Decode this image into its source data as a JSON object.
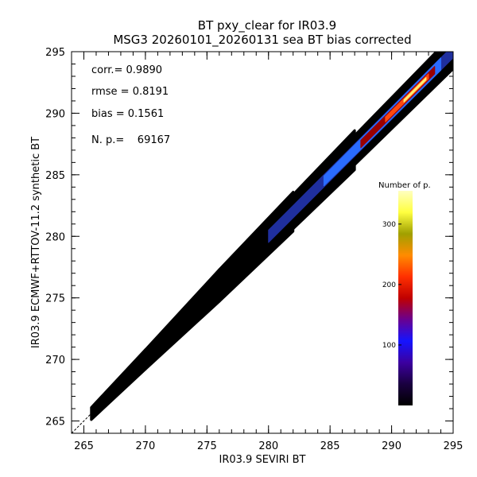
{
  "chart_data": {
    "type": "heatmap",
    "title": "BT pxy_clear for IR03.9",
    "subtitle": "MSG3 20260101_20260131 sea BT bias corrected",
    "xlabel": "IR03.9 SEVIRI BT",
    "ylabel": "IR03.9 ECMWF+RTTOV-11.2 synthetic BT",
    "xlim": [
      264,
      295
    ],
    "ylim": [
      264,
      295
    ],
    "x_ticks": [
      "265",
      "270",
      "275",
      "280",
      "285",
      "290",
      "295"
    ],
    "y_ticks": [
      "265",
      "270",
      "275",
      "280",
      "285",
      "290",
      "295"
    ],
    "stats": {
      "corr": "corr.= 0.9890",
      "rmse": "rmse = 0.8191",
      "bias": "bias = 0.1561",
      "np": "N. p.=    69167"
    },
    "colorbar": {
      "title": "Number of p.",
      "ticks": [
        "100",
        "200",
        "300"
      ],
      "tick_values": [
        100,
        200,
        300
      ],
      "range": [
        0,
        355
      ],
      "colors": [
        "#000000",
        "#1a0040",
        "#3c00a0",
        "#1414ff",
        "#6a0090",
        "#c00000",
        "#ff3000",
        "#ff8c00",
        "#a0a000",
        "#ffff40",
        "#ffffc0"
      ]
    },
    "density_bands": [
      {
        "x": [
          265.6,
          270
        ],
        "lo": 0.5,
        "hi": 0.8,
        "level": 0
      },
      {
        "x": [
          270,
          276
        ],
        "lo": 0.8,
        "hi": 1.3,
        "level": 0
      },
      {
        "x": [
          276,
          282
        ],
        "lo": 1.3,
        "hi": 1.6,
        "level": 0
      },
      {
        "x": [
          282,
          287
        ],
        "lo": 1.4,
        "hi": 1.6,
        "level": 0
      },
      {
        "x": [
          287,
          295
        ],
        "lo": 1.2,
        "hi": 1.4,
        "level": 0
      },
      {
        "x": [
          280,
          295
        ],
        "lo": 0.5,
        "hi": 0.5,
        "level": 1
      },
      {
        "x": [
          284.5,
          294
        ],
        "lo": 0.4,
        "hi": 0.5,
        "level": 2
      },
      {
        "x": [
          287.5,
          293.5
        ],
        "lo": 0.3,
        "hi": 0.3,
        "level": 3
      },
      {
        "x": [
          289.5,
          293
        ],
        "lo": 0.2,
        "hi": 0.2,
        "level": 4
      },
      {
        "x": [
          291,
          292.8
        ],
        "lo": 0.1,
        "hi": 0.1,
        "level": 5
      }
    ]
  }
}
